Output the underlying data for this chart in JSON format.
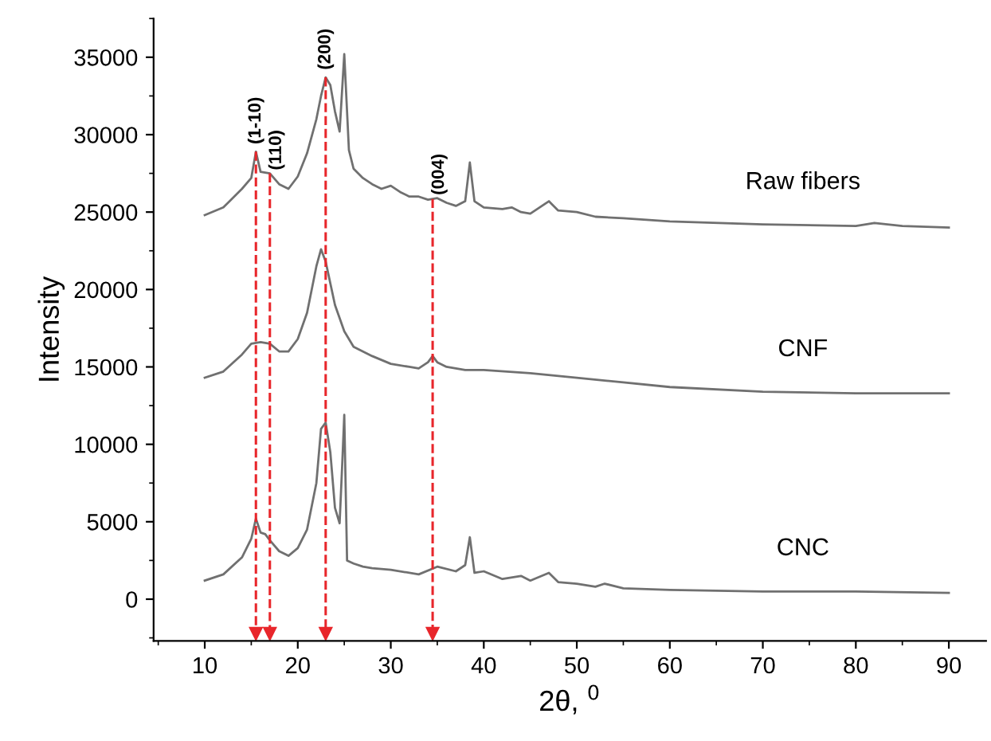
{
  "chart_data": {
    "type": "line",
    "xlabel": "2θ, $^{0}$",
    "ylabel": "Intensity",
    "xlim": [
      4.5,
      94
    ],
    "xticks": [
      10,
      20,
      30,
      40,
      50,
      60,
      70,
      80,
      90
    ],
    "ylim": [
      -2700,
      37500
    ],
    "yticks": [
      0,
      5000,
      10000,
      15000,
      20000,
      25000,
      30000,
      35000
    ],
    "grid": false,
    "legend": false,
    "marker": "none",
    "line_style": "solid",
    "series": [
      {
        "name": "Raw fibers",
        "color": "#707070",
        "x": [
          10,
          12,
          14,
          15,
          15.5,
          16,
          17,
          18,
          19,
          20,
          21,
          22,
          22.5,
          23,
          23.5,
          24,
          24.5,
          25,
          25.5,
          26,
          27,
          28,
          29,
          30,
          31,
          32,
          33,
          34,
          35,
          36,
          37,
          38,
          38.5,
          39,
          40,
          42,
          43,
          44,
          45,
          46,
          47,
          48,
          50,
          52,
          55,
          60,
          70,
          80,
          82,
          85,
          90
        ],
        "values": [
          24800,
          25300,
          26500,
          27200,
          28900,
          27600,
          27500,
          26800,
          26500,
          27300,
          28800,
          31000,
          32500,
          33700,
          33200,
          31500,
          30200,
          35200,
          29000,
          27800,
          27200,
          26800,
          26500,
          26700,
          26300,
          26000,
          26000,
          25800,
          25900,
          25600,
          25400,
          25700,
          28200,
          25700,
          25300,
          25200,
          25300,
          25000,
          24900,
          25300,
          25700,
          25100,
          25000,
          24700,
          24600,
          24400,
          24200,
          24100,
          24300,
          24100,
          24000
        ]
      },
      {
        "name": "CNF",
        "color": "#707070",
        "x": [
          10,
          12,
          14,
          15,
          16,
          17,
          18,
          19,
          20,
          21,
          22,
          22.5,
          23,
          24,
          25,
          26,
          28,
          30,
          32,
          33,
          34,
          34.5,
          35,
          36,
          38,
          40,
          45,
          50,
          55,
          60,
          70,
          80,
          90
        ],
        "values": [
          14300,
          14700,
          15800,
          16500,
          16600,
          16500,
          16000,
          16000,
          16800,
          18500,
          21500,
          22600,
          21800,
          19000,
          17300,
          16300,
          15700,
          15200,
          15000,
          14900,
          15300,
          15700,
          15300,
          15000,
          14800,
          14800,
          14600,
          14300,
          14000,
          13700,
          13400,
          13300,
          13300
        ]
      },
      {
        "name": "CNC",
        "color": "#707070",
        "x": [
          10,
          12,
          14,
          15,
          15.5,
          16,
          16.5,
          17,
          18,
          19,
          20,
          21,
          22,
          22.5,
          23,
          23.5,
          24,
          24.5,
          24.8,
          25,
          25.3,
          26,
          27,
          28,
          30,
          33,
          35,
          37,
          38,
          38.5,
          39,
          40,
          42,
          44,
          45,
          47,
          48,
          50,
          52,
          53,
          55,
          60,
          70,
          80,
          90
        ],
        "values": [
          1200,
          1600,
          2700,
          3900,
          5200,
          4300,
          4200,
          3800,
          3100,
          2800,
          3300,
          4500,
          7500,
          11000,
          11400,
          9500,
          5900,
          4900,
          9000,
          11900,
          2500,
          2300,
          2100,
          2000,
          1900,
          1600,
          2100,
          1800,
          2200,
          4000,
          1700,
          1800,
          1300,
          1500,
          1200,
          1700,
          1100,
          1000,
          800,
          1000,
          700,
          600,
          500,
          500,
          400
        ]
      }
    ],
    "ref_lines": [
      {
        "axis": "x",
        "value": 15.5,
        "color": "#e8262b",
        "line_style": "dashed"
      },
      {
        "axis": "x",
        "value": 17,
        "color": "#e8262b",
        "line_style": "dashed"
      },
      {
        "axis": "x",
        "value": 23,
        "color": "#e8262b",
        "line_style": "dashed"
      },
      {
        "axis": "x",
        "value": 34.5,
        "color": "#e8262b",
        "line_style": "dashed"
      }
    ],
    "annotations": [
      {
        "text": "(1-10)",
        "x": 15.5,
        "y": 28900
      },
      {
        "text": "(110)",
        "x": 17,
        "y": 27500
      },
      {
        "text": "(200)",
        "x": 23,
        "y": 33700
      },
      {
        "text": "(004)",
        "x": 34.5,
        "y": 25900
      }
    ]
  }
}
